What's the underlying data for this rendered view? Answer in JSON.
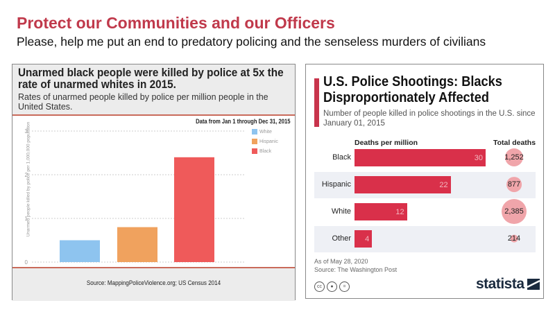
{
  "slide": {
    "title": "Protect our Communities and our Officers",
    "subtitle": "Please, help me put an end to predatory policing and the senseless murders of civilians"
  },
  "chart_data": [
    {
      "type": "bar",
      "title": "Unarmed black people were killed by police at 5x the rate of unarmed whites in 2015.",
      "subtitle": "Rates of unarmed people killed by police per million people in the United States.",
      "note": "Data from Jan 1 through Dec 31, 2015",
      "source": "Source: MappingPoliceViolence.org; US Census 2014",
      "ylabel": "Unarmed people killed by police per 1,000,000 population",
      "ylim": [
        0,
        3
      ],
      "yticks": [
        "0",
        "1",
        "2",
        "3"
      ],
      "grid": true,
      "legend": "top-right",
      "categories": [
        "White",
        "Hispanic",
        "Black"
      ],
      "values": [
        0.5,
        0.8,
        2.4
      ],
      "colors": [
        "#8ec4ef",
        "#f0a25e",
        "#ef5a5a"
      ]
    },
    {
      "type": "bar",
      "orientation": "horizontal",
      "title": "U.S. Police Shootings: Blacks Disproportionately Affected",
      "subtitle": "Number of people killed in police shootings in the U.S. since January 01, 2015",
      "value_header": "Deaths per million",
      "total_header": "Total deaths",
      "categories": [
        "Black",
        "Hispanic",
        "White",
        "Other"
      ],
      "values": [
        30,
        22,
        12,
        4
      ],
      "totals": [
        "1,252",
        "877",
        "2,385",
        "214"
      ],
      "total_values": [
        1252,
        877,
        2385,
        214
      ],
      "color": "#d9304a",
      "bubble_color": "#f0a5aa",
      "footnote": "As of May 28, 2020",
      "source": "Source: The Washington Post",
      "brand": "statista"
    }
  ]
}
